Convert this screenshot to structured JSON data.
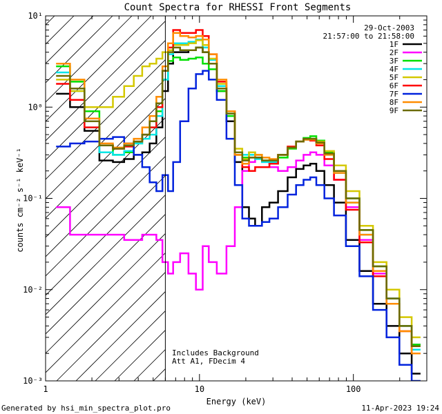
{
  "chart_data": {
    "type": "line",
    "title": "Count Spectra for RHESSI Front Segments",
    "xlabel": "Energy (keV)",
    "ylabel": "counts cm⁻² s⁻¹ keV⁻¹",
    "xscale": "log",
    "yscale": "log",
    "xlim": [
      1,
      300
    ],
    "ylim": [
      0.001,
      10
    ],
    "x_ticks": [
      {
        "value": 1,
        "label": "1"
      },
      {
        "value": 10,
        "label": "10"
      },
      {
        "value": 100,
        "label": "100"
      }
    ],
    "y_ticks": [
      {
        "value": 0.001,
        "label": "10⁻³"
      },
      {
        "value": 0.01,
        "label": "10⁻²"
      },
      {
        "value": 0.1,
        "label": "10⁻¹"
      },
      {
        "value": 1,
        "label": "10⁰"
      },
      {
        "value": 10,
        "label": "10¹"
      }
    ],
    "attenuator_cutoff_kev": 6,
    "hatched_region_kev": [
      1,
      6
    ],
    "date": "29-Oct-2003",
    "time_range": "21:57:00 to 21:58:00",
    "annotations": [
      "Includes Background",
      "Att A1, FDecim 4"
    ],
    "legend_position": "top-right",
    "x": [
      1.3,
      1.6,
      2.0,
      2.5,
      3.0,
      3.5,
      4.0,
      4.5,
      5.0,
      5.5,
      6.0,
      6.5,
      7.0,
      8.0,
      9.0,
      10.0,
      11.0,
      12.0,
      14.0,
      16.0,
      18.0,
      20.0,
      22.0,
      24.0,
      27.0,
      30.0,
      35.0,
      40.0,
      45.0,
      50.0,
      55.0,
      60.0,
      70.0,
      80.0,
      100.0,
      120.0,
      150.0,
      180.0,
      220.0,
      260.0
    ],
    "series": [
      {
        "name": "1F",
        "color": "#000000",
        "values": [
          1.4,
          1.0,
          0.55,
          0.26,
          0.25,
          0.27,
          0.3,
          0.32,
          0.4,
          0.6,
          1.5,
          3.0,
          4.0,
          4.0,
          4.2,
          4.5,
          4.0,
          3.0,
          1.5,
          0.7,
          0.25,
          0.08,
          0.06,
          0.05,
          0.08,
          0.09,
          0.12,
          0.17,
          0.21,
          0.23,
          0.24,
          0.2,
          0.14,
          0.09,
          0.035,
          0.016,
          0.007,
          0.004,
          0.002,
          0.0012
        ]
      },
      {
        "name": "2F",
        "color": "#ff00ff",
        "values": [
          0.08,
          0.04,
          0.04,
          0.04,
          0.04,
          0.035,
          0.035,
          0.04,
          0.04,
          0.035,
          0.02,
          0.015,
          0.02,
          0.025,
          0.015,
          0.01,
          0.03,
          0.02,
          0.015,
          0.03,
          0.08,
          0.2,
          0.25,
          0.28,
          0.25,
          0.22,
          0.2,
          0.22,
          0.26,
          0.3,
          0.32,
          0.3,
          0.23,
          0.16,
          0.08,
          0.035,
          0.015,
          0.008,
          0.004,
          0.0025
        ]
      },
      {
        "name": "3F",
        "color": "#00e000",
        "values": [
          2.8,
          1.9,
          0.9,
          0.38,
          0.3,
          0.32,
          0.4,
          0.5,
          0.6,
          0.9,
          2.0,
          3.2,
          3.5,
          3.3,
          3.4,
          3.5,
          3.0,
          2.6,
          1.5,
          0.8,
          0.3,
          0.28,
          0.32,
          0.3,
          0.26,
          0.24,
          0.28,
          0.35,
          0.42,
          0.46,
          0.48,
          0.43,
          0.32,
          0.2,
          0.1,
          0.045,
          0.018,
          0.008,
          0.004,
          0.0025
        ]
      },
      {
        "name": "4F",
        "color": "#00e5e5",
        "values": [
          2.4,
          1.5,
          0.6,
          0.32,
          0.3,
          0.33,
          0.4,
          0.45,
          0.5,
          0.8,
          2.0,
          3.8,
          5.0,
          5.0,
          5.2,
          5.5,
          4.5,
          3.3,
          1.7,
          0.85,
          0.32,
          0.3,
          0.3,
          0.27,
          0.25,
          0.25,
          0.3,
          0.36,
          0.42,
          0.44,
          0.45,
          0.41,
          0.3,
          0.19,
          0.09,
          0.04,
          0.016,
          0.008,
          0.004,
          0.0022
        ]
      },
      {
        "name": "5F",
        "color": "#d4c800",
        "values": [
          2.0,
          1.5,
          1.0,
          1.0,
          1.3,
          1.7,
          2.2,
          2.8,
          3.0,
          3.4,
          4.0,
          4.2,
          4.8,
          4.8,
          5.0,
          5.4,
          4.8,
          3.4,
          1.8,
          0.9,
          0.35,
          0.27,
          0.32,
          0.3,
          0.26,
          0.26,
          0.3,
          0.36,
          0.42,
          0.44,
          0.45,
          0.42,
          0.33,
          0.23,
          0.12,
          0.05,
          0.02,
          0.01,
          0.005,
          0.003
        ]
      },
      {
        "name": "6F",
        "color": "#ff0000",
        "values": [
          1.8,
          1.2,
          0.6,
          0.38,
          0.35,
          0.37,
          0.42,
          0.5,
          0.6,
          1.0,
          2.5,
          4.5,
          7.0,
          6.5,
          6.5,
          7.0,
          6.0,
          3.8,
          1.9,
          0.9,
          0.3,
          0.22,
          0.2,
          0.22,
          0.22,
          0.24,
          0.3,
          0.37,
          0.42,
          0.44,
          0.43,
          0.38,
          0.27,
          0.16,
          0.075,
          0.033,
          0.014,
          0.007,
          0.0035,
          0.002
        ]
      },
      {
        "name": "7F",
        "color": "#0022dd",
        "values": [
          0.37,
          0.4,
          0.42,
          0.45,
          0.47,
          0.4,
          0.3,
          0.22,
          0.15,
          0.12,
          0.18,
          0.12,
          0.25,
          0.7,
          1.6,
          2.3,
          2.5,
          2.0,
          1.2,
          0.45,
          0.14,
          0.06,
          0.05,
          0.05,
          0.055,
          0.06,
          0.08,
          0.11,
          0.14,
          0.16,
          0.17,
          0.14,
          0.1,
          0.065,
          0.03,
          0.014,
          0.006,
          0.003,
          0.0015,
          0.001
        ]
      },
      {
        "name": "8F",
        "color": "#ff8c00",
        "values": [
          3.0,
          2.0,
          0.75,
          0.4,
          0.36,
          0.4,
          0.45,
          0.6,
          0.8,
          1.3,
          2.8,
          5.0,
          6.5,
          6.0,
          5.8,
          6.0,
          5.5,
          3.8,
          2.0,
          0.9,
          0.3,
          0.24,
          0.28,
          0.3,
          0.28,
          0.27,
          0.3,
          0.36,
          0.42,
          0.44,
          0.44,
          0.4,
          0.3,
          0.19,
          0.09,
          0.04,
          0.016,
          0.007,
          0.0035,
          0.002
        ]
      },
      {
        "name": "9F",
        "color": "#6b6b00",
        "values": [
          2.2,
          1.6,
          0.7,
          0.38,
          0.35,
          0.38,
          0.42,
          0.5,
          0.7,
          1.1,
          2.5,
          4.0,
          4.5,
          4.2,
          4.2,
          4.5,
          4.0,
          3.0,
          1.6,
          0.85,
          0.32,
          0.26,
          0.28,
          0.28,
          0.26,
          0.26,
          0.3,
          0.36,
          0.42,
          0.45,
          0.45,
          0.41,
          0.31,
          0.2,
          0.1,
          0.045,
          0.018,
          0.008,
          0.004,
          0.0024
        ]
      }
    ]
  },
  "footer": {
    "left": "Generated by hsi_min_spectra_plot.pro",
    "right": "11-Apr-2023 19:24"
  }
}
